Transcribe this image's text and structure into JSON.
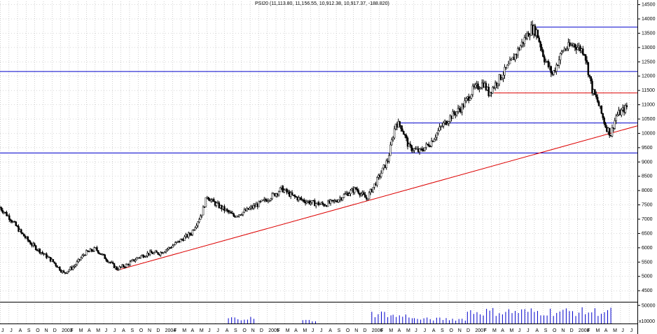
{
  "chart_data": {
    "type": "candlestick",
    "title": "PSI20 (11,113.80, 11,156.55, 10,912.38, 10,917.37, -188.820)",
    "price_axis": {
      "ticks": [
        4500,
        5000,
        5500,
        6000,
        6500,
        7000,
        7500,
        8000,
        8500,
        9000,
        9500,
        10000,
        10500,
        11000,
        11500,
        12000,
        12500,
        13000,
        13500,
        14000,
        14500
      ],
      "ylim": [
        4100,
        14600
      ]
    },
    "volume_axis": {
      "tick_label": "50000",
      "scale_label": "x10000",
      "ylim": [
        0,
        60000
      ]
    },
    "month_labels": [
      "J",
      "J",
      "A",
      "S",
      "O",
      "N",
      "D",
      "2003",
      "F",
      "M",
      "A",
      "M",
      "J",
      "J",
      "A",
      "S",
      "O",
      "N",
      "D",
      "2004",
      "F",
      "M",
      "A",
      "M",
      "J",
      "J",
      "A",
      "S",
      "O",
      "N",
      "D",
      "2005",
      "F",
      "M",
      "A",
      "M",
      "J",
      "J",
      "A",
      "S",
      "O",
      "N",
      "D",
      "2006",
      "F",
      "M",
      "A",
      "M",
      "J",
      "J",
      "A",
      "S",
      "O",
      "N",
      "D",
      "2007",
      "F",
      "M",
      "A",
      "M",
      "J",
      "J",
      "A",
      "S",
      "O",
      "N",
      "D",
      "2008",
      "F",
      "M",
      "A",
      "M",
      "J",
      "J"
    ],
    "price_path": [
      [
        0,
        7400
      ],
      [
        4,
        7000
      ],
      [
        8,
        6500
      ],
      [
        12,
        6100
      ],
      [
        16,
        5800
      ],
      [
        20,
        5500
      ],
      [
        24,
        5100
      ],
      [
        28,
        5350
      ],
      [
        32,
        5800
      ],
      [
        36,
        5950
      ],
      [
        40,
        5600
      ],
      [
        44,
        5250
      ],
      [
        48,
        5400
      ],
      [
        52,
        5650
      ],
      [
        56,
        5800
      ],
      [
        60,
        5800
      ],
      [
        64,
        6000
      ],
      [
        68,
        6250
      ],
      [
        72,
        6500
      ],
      [
        76,
        7200
      ],
      [
        78,
        7800
      ],
      [
        80,
        7600
      ],
      [
        84,
        7350
      ],
      [
        88,
        7100
      ],
      [
        92,
        7250
      ],
      [
        96,
        7450
      ],
      [
        100,
        7650
      ],
      [
        104,
        7900
      ],
      [
        106,
        8050
      ],
      [
        110,
        7800
      ],
      [
        114,
        7650
      ],
      [
        118,
        7550
      ],
      [
        122,
        7500
      ],
      [
        126,
        7600
      ],
      [
        130,
        7850
      ],
      [
        134,
        8050
      ],
      [
        138,
        7700
      ],
      [
        142,
        8350
      ],
      [
        146,
        9050
      ],
      [
        149,
        10350
      ],
      [
        151,
        10250
      ],
      [
        154,
        9500
      ],
      [
        158,
        9350
      ],
      [
        162,
        9650
      ],
      [
        166,
        10200
      ],
      [
        170,
        10600
      ],
      [
        174,
        10900
      ],
      [
        178,
        11500
      ],
      [
        182,
        11750
      ],
      [
        184,
        11400
      ],
      [
        188,
        11900
      ],
      [
        192,
        12400
      ],
      [
        196,
        13050
      ],
      [
        200,
        13650
      ],
      [
        202,
        13550
      ],
      [
        205,
        12600
      ],
      [
        208,
        12050
      ],
      [
        212,
        12900
      ],
      [
        216,
        13100
      ],
      [
        220,
        12850
      ],
      [
        223,
        11500
      ],
      [
        225,
        11100
      ],
      [
        228,
        10250
      ],
      [
        230,
        9950
      ],
      [
        232,
        10600
      ],
      [
        236,
        10900
      ]
    ],
    "horizontal_lines": [
      {
        "value": 13700,
        "from": 13600,
        "color": "#0000cc"
      },
      {
        "value": 12150,
        "from": 0,
        "color": "#0000cc"
      },
      {
        "value": 11400,
        "from": 12200,
        "color": "#dd0000"
      },
      {
        "value": 10350,
        "from": 9900,
        "color": "#0000cc"
      },
      {
        "value": 9300,
        "from": 0,
        "color": "#0000cc"
      }
    ],
    "trend_line": {
      "start": {
        "idx": 44,
        "value": 5200
      },
      "end": {
        "idx": 240,
        "value": 10250
      },
      "color": "#dd0000"
    },
    "volume_bars": [
      {
        "from": 86,
        "to": 96,
        "level": 0.35
      },
      {
        "from": 114,
        "to": 120,
        "level": 0.2
      },
      {
        "from": 140,
        "to": 148,
        "level": 0.65
      },
      {
        "from": 148,
        "to": 156,
        "level": 0.5
      },
      {
        "from": 156,
        "to": 176,
        "level": 0.3
      },
      {
        "from": 176,
        "to": 230,
        "level": 0.8
      }
    ],
    "colors": {
      "candle": "#000000",
      "volume": "#0000cc",
      "grid": "#b0b0b0"
    },
    "grid": true
  }
}
